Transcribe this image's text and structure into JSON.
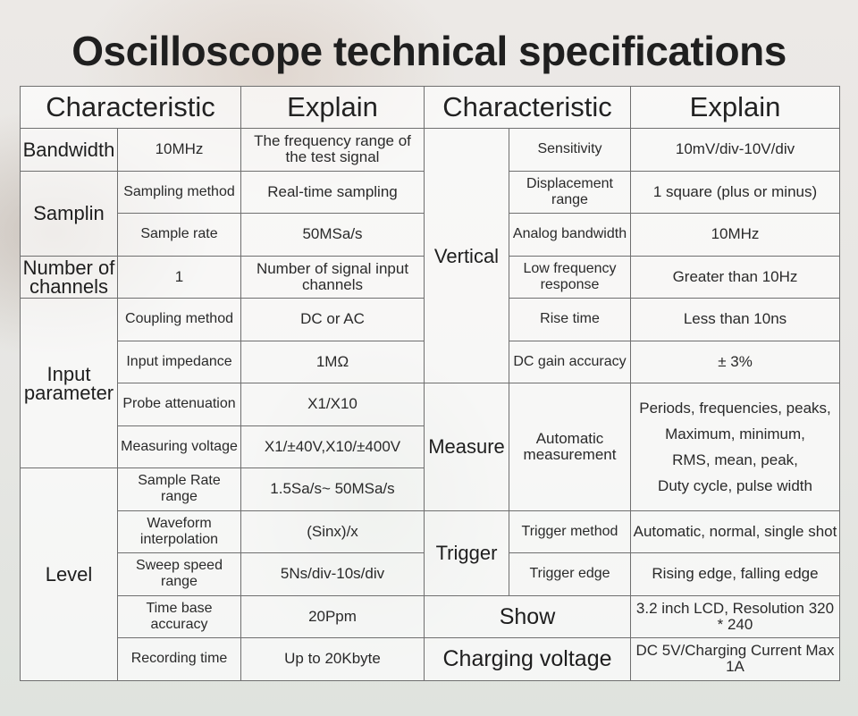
{
  "title": "Oscilloscope technical specifications",
  "headers": {
    "characteristic_left": "Characteristic",
    "explain_left": "Explain",
    "characteristic_right": "Characteristic",
    "explain_right": "Explain"
  },
  "left": {
    "bandwidth": {
      "category": "Bandwidth",
      "value": "10MHz",
      "explain": "The frequency range of the test signal"
    },
    "sampling": {
      "category": "Samplin",
      "items": [
        {
          "param": "Sampling method",
          "explain": "Real-time sampling"
        },
        {
          "param": "Sample rate",
          "explain": "50MSa/s"
        }
      ]
    },
    "channels": {
      "category": "Number of channels",
      "value": "1",
      "explain": "Number of signal input channels"
    },
    "input": {
      "category": "Input parameter",
      "items": [
        {
          "param": "Coupling method",
          "explain": "DC or AC"
        },
        {
          "param": "Input impedance",
          "explain": "1MΩ"
        },
        {
          "param": "Probe attenuation",
          "explain": "X1/X10"
        },
        {
          "param": "Measuring voltage",
          "explain": "X1/±40V,X10/±400V"
        }
      ]
    },
    "level": {
      "category": "Level",
      "items": [
        {
          "param": "Sample Rate range",
          "explain": "1.5Sa/s~ 50MSa/s"
        },
        {
          "param": "Waveform interpolation",
          "explain": "(Sinx)/x"
        },
        {
          "param": "Sweep speed range",
          "explain": "5Ns/div-10s/div"
        },
        {
          "param": "Time base accuracy",
          "explain": "20Ppm"
        },
        {
          "param": "Recording time",
          "explain": "Up to 20Kbyte"
        }
      ]
    }
  },
  "right": {
    "vertical": {
      "category": "Vertical",
      "items": [
        {
          "param": "Sensitivity",
          "explain": "10mV/div-10V/div"
        },
        {
          "param": "Displacement range",
          "explain": "1 square (plus or minus)"
        },
        {
          "param": "Analog bandwidth",
          "explain": "10MHz"
        },
        {
          "param": "Low frequency response",
          "explain": "Greater than 10Hz"
        },
        {
          "param": "Rise time",
          "explain": "Less than 10ns"
        },
        {
          "param": "DC gain accuracy",
          "explain": "± 3%"
        }
      ]
    },
    "measure": {
      "category": "Measure",
      "param": "Automatic measurement",
      "explain_lines": [
        "Periods, frequencies, peaks,",
        "Maximum, minimum,",
        "RMS, mean, peak,",
        "Duty cycle, pulse width"
      ]
    },
    "trigger": {
      "category": "Trigger",
      "items": [
        {
          "param": "Trigger method",
          "explain": "Automatic, normal, single shot"
        },
        {
          "param": "Trigger edge",
          "explain": "Rising edge, falling edge"
        }
      ]
    },
    "show": {
      "category": "Show",
      "explain": "3.2 inch LCD, Resolution 320 * 240"
    },
    "charging": {
      "category": "Charging voltage",
      "explain": "DC 5V/Charging Current Max 1A"
    }
  }
}
